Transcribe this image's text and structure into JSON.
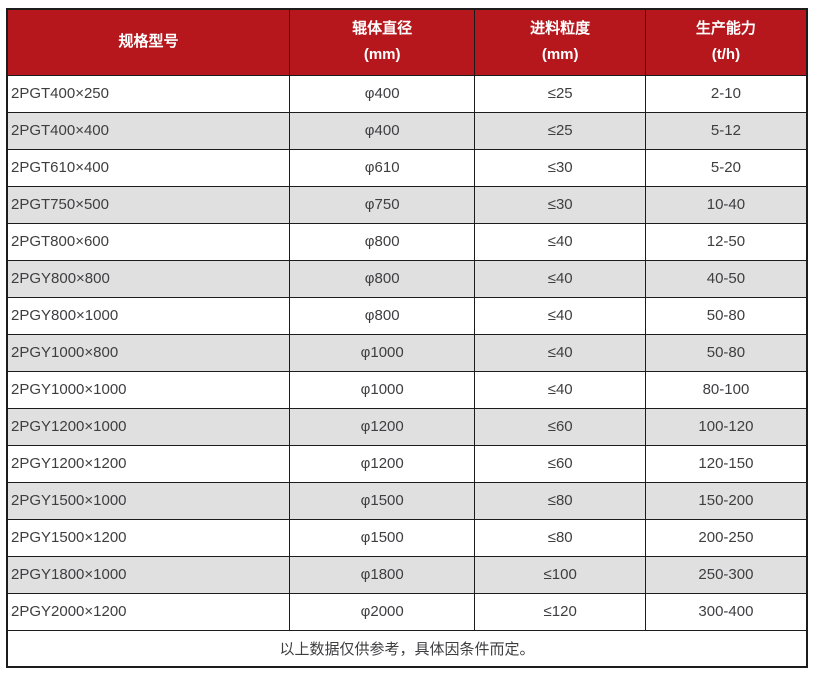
{
  "colors": {
    "header_bg": "#b5171c",
    "header_text": "#ffffff",
    "row_alt_bg": "#e0e0e0",
    "row_bg": "#ffffff",
    "border": "#1c1c1c",
    "text": "#3e3e41"
  },
  "table": {
    "columns": [
      {
        "label": "规格型号",
        "sub": ""
      },
      {
        "label": "辊体直径",
        "sub": "(mm)"
      },
      {
        "label": "进料粒度",
        "sub": "(mm)"
      },
      {
        "label": "生产能力",
        "sub": "(t/h)"
      }
    ],
    "rows": [
      [
        "2PGT400×250",
        "φ400",
        "≤25",
        "2-10"
      ],
      [
        "2PGT400×400",
        "φ400",
        "≤25",
        "5-12"
      ],
      [
        "2PGT610×400",
        "φ610",
        "≤30",
        "5-20"
      ],
      [
        "2PGT750×500",
        "φ750",
        "≤30",
        "10-40"
      ],
      [
        "2PGT800×600",
        "φ800",
        "≤40",
        "12-50"
      ],
      [
        "2PGY800×800",
        "φ800",
        "≤40",
        "40-50"
      ],
      [
        "2PGY800×1000",
        "φ800",
        "≤40",
        "50-80"
      ],
      [
        "2PGY1000×800",
        "φ1000",
        "≤40",
        "50-80"
      ],
      [
        "2PGY1000×1000",
        "φ1000",
        "≤40",
        "80-100"
      ],
      [
        "2PGY1200×1000",
        "φ1200",
        "≤60",
        "100-120"
      ],
      [
        "2PGY1200×1200",
        "φ1200",
        "≤60",
        "120-150"
      ],
      [
        "2PGY1500×1000",
        "φ1500",
        "≤80",
        "150-200"
      ],
      [
        "2PGY1500×1200",
        "φ1500",
        "≤80",
        "200-250"
      ],
      [
        "2PGY1800×1000",
        "φ1800",
        "≤100",
        "250-300"
      ],
      [
        "2PGY2000×1200",
        "φ2000",
        "≤120",
        "300-400"
      ]
    ],
    "footnote": "以上数据仅供参考，具体因条件而定。"
  }
}
